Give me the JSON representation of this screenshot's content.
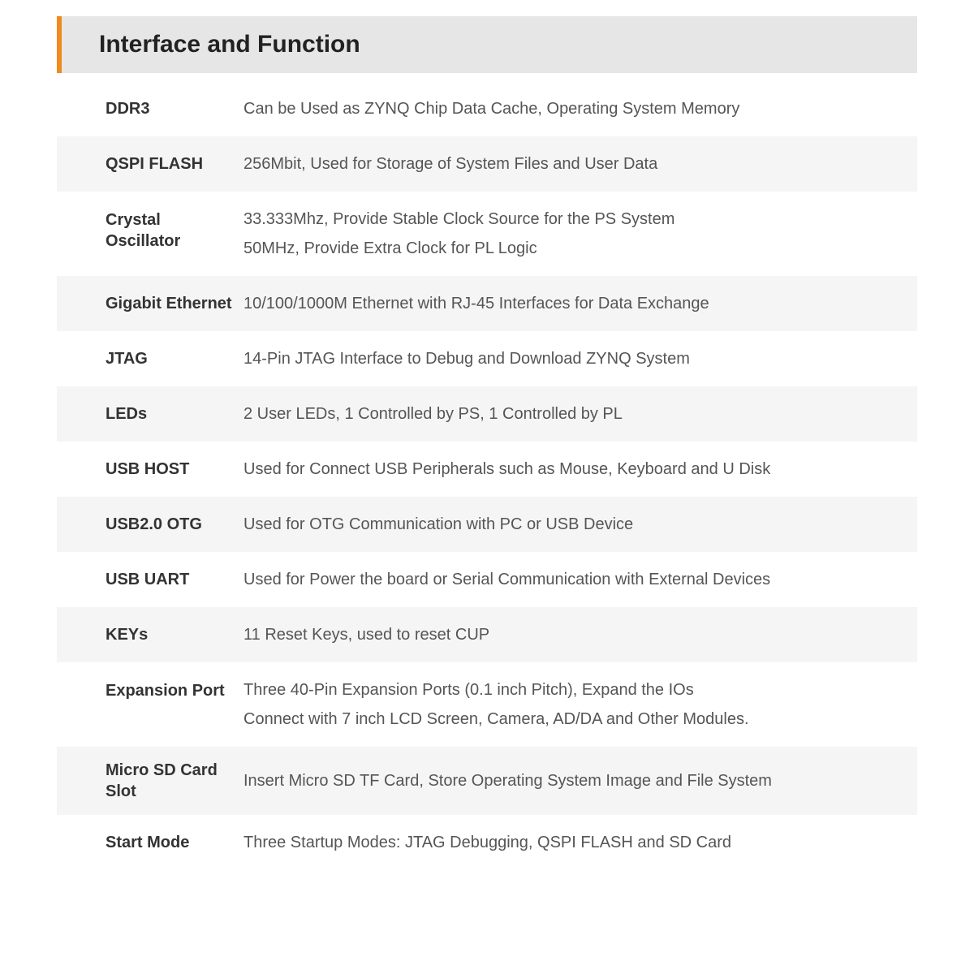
{
  "header": {
    "title": "Interface and Function"
  },
  "rows": [
    {
      "label": "DDR3",
      "desc": [
        "Can be Used as ZYNQ Chip Data Cache, Operating System Memory"
      ],
      "alt": false
    },
    {
      "label": "QSPI FLASH",
      "desc": [
        "256Mbit, Used for Storage of System Files and User Data"
      ],
      "alt": true
    },
    {
      "label": "Crystal Oscillator",
      "desc": [
        "33.333Mhz,  Provide Stable Clock Source for the PS System",
        "50MHz, Provide Extra Clock for PL Logic"
      ],
      "alt": false
    },
    {
      "label": "Gigabit Ethernet",
      "desc": [
        "10/100/1000M Ethernet with RJ-45 Interfaces for Data Exchange"
      ],
      "alt": true
    },
    {
      "label": "JTAG",
      "desc": [
        "14-Pin JTAG Interface to Debug and Download ZYNQ System"
      ],
      "alt": false
    },
    {
      "label": "LEDs",
      "desc": [
        "2 User LEDs, 1 Controlled by PS, 1 Controlled by PL"
      ],
      "alt": true
    },
    {
      "label": "USB HOST",
      "desc": [
        "Used for Connect USB Peripherals such as Mouse, Keyboard and U Disk"
      ],
      "alt": false
    },
    {
      "label": "USB2.0 OTG",
      "desc": [
        "Used for OTG Communication with PC or USB Device"
      ],
      "alt": true
    },
    {
      "label": "USB UART",
      "desc": [
        "Used for Power the board or Serial Communication with External Devices"
      ],
      "alt": false
    },
    {
      "label": "KEYs",
      "desc": [
        "11 Reset Keys, used to reset CUP"
      ],
      "alt": true
    },
    {
      "label": "Expansion Port",
      "desc": [
        "Three 40-Pin Expansion Ports (0.1 inch Pitch), Expand the IOs",
        "Connect with 7 inch LCD Screen, Camera, AD/DA and Other Modules."
      ],
      "alt": false
    },
    {
      "label": "Micro SD Card Slot",
      "desc": [
        "Insert Micro SD TF Card, Store Operating System Image and File System"
      ],
      "alt": true
    },
    {
      "label": "Start Mode",
      "desc": [
        "Three Startup Modes: JTAG Debugging, QSPI FLASH and SD Card"
      ],
      "alt": false
    }
  ],
  "style": {
    "accent_color": "#f08a1e",
    "header_bg": "#e6e6e6",
    "row_alt_bg": "#f5f5f5",
    "row_bg": "#ffffff",
    "title_fontsize": 30,
    "body_fontsize": 20,
    "label_width": 230
  }
}
